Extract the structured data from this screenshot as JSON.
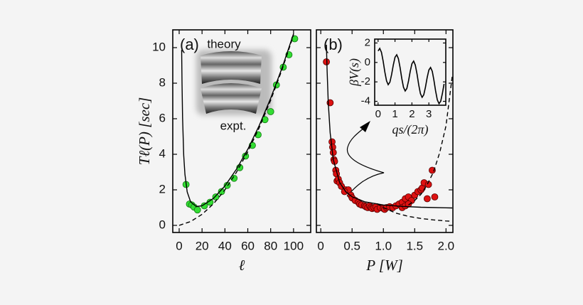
{
  "chart_data": [
    {
      "type": "scatter",
      "panel_label": "(a)",
      "x_label": "ℓ",
      "y_label": "Tℓ(P) [sec]",
      "annotations": [
        "theory",
        "expt."
      ],
      "xlim": [
        -5.6,
        115
      ],
      "ylim": [
        -0.4,
        11
      ],
      "xticks": [
        0,
        20,
        40,
        60,
        80,
        100
      ],
      "yticks": [
        0,
        2,
        4,
        6,
        8,
        10
      ],
      "series": [
        {
          "type": "scatter",
          "color": "#33dd33",
          "x": [
            6,
            9,
            11,
            13,
            16,
            22,
            27,
            32,
            37,
            42,
            48,
            53,
            58,
            64,
            69,
            75,
            80,
            85,
            91,
            96,
            101
          ],
          "values": [
            2.3,
            1.2,
            1.15,
            1.03,
            0.87,
            1.1,
            1.3,
            1.6,
            1.9,
            2.25,
            2.65,
            3.25,
            3.9,
            4.5,
            5.1,
            5.95,
            6.4,
            7.9,
            8.9,
            9.6,
            10.5
          ]
        },
        {
          "type": "line",
          "color": "#000000",
          "dash": false,
          "x": [
            2.2,
            2.5,
            3,
            4,
            5,
            7,
            10,
            15,
            20,
            30,
            40,
            50,
            60,
            70,
            80,
            90,
            100
          ],
          "values": [
            9.87,
            8.04,
            6.05,
            3.94,
            2.88,
            1.88,
            1.32,
            1.06,
            1.1,
            1.52,
            2.22,
            3.15,
            4.28,
            5.62,
            7.15,
            8.87,
            10.78
          ]
        },
        {
          "type": "line",
          "color": "#000000",
          "dash": true,
          "x": [
            0,
            10,
            20,
            30,
            40,
            50,
            60,
            70,
            80,
            90,
            100
          ],
          "values": [
            0,
            0.215,
            0.62,
            1.215,
            2.0,
            2.975,
            4.14,
            5.495,
            7.04,
            8.775,
            10.7
          ]
        }
      ]
    },
    {
      "type": "scatter",
      "panel_label": "(b)",
      "x_label": "P [W]",
      "ytick_labels": false,
      "xlim": [
        -0.07,
        2.11
      ],
      "ylim": [
        -0.4,
        11
      ],
      "xticks": [
        0,
        0.5,
        {
          "value": 1,
          "label": "1.0"
        },
        1.5,
        {
          "value": 2,
          "label": "2.0"
        }
      ],
      "yticks": [
        0,
        2,
        4,
        6,
        8,
        10
      ],
      "series": [
        {
          "type": "scatter",
          "color": "#dd1111",
          "x": [
            0.09,
            0.15,
            0.18,
            0.19,
            0.2,
            0.21,
            0.22,
            0.24,
            0.26,
            0.25,
            0.28,
            0.3,
            0.33,
            0.4,
            0.48,
            0.5,
            0.55,
            0.6,
            0.62,
            0.65,
            0.7,
            0.72,
            0.75,
            0.78,
            0.8,
            0.82,
            0.85,
            0.88,
            0.9,
            0.95,
            1.0,
            1.02,
            1.05,
            1.1,
            1.15,
            1.2,
            1.25,
            1.3,
            1.35,
            1.4,
            1.45,
            1.5,
            1.55,
            1.6,
            1.62,
            1.65,
            1.7,
            1.72,
            1.78,
            1.82,
            1.3,
            1.35,
            1.4,
            0.44,
            0.38
          ],
          "values": [
            9.2,
            6.9,
            4.7,
            4.4,
            4.1,
            3.7,
            3.6,
            3.1,
            2.5,
            2.9,
            2.6,
            2.4,
            2.2,
            2.0,
            1.7,
            1.55,
            1.4,
            1.3,
            1.2,
            1.15,
            1.1,
            1.05,
            1.0,
            1.1,
            1.0,
            0.95,
            1.0,
            1.05,
            0.9,
            1.0,
            0.95,
            0.9,
            1.0,
            1.05,
            1.0,
            1.1,
            1.2,
            1.3,
            1.5,
            1.6,
            1.4,
            1.7,
            1.9,
            2.0,
            2.1,
            2.4,
            1.5,
            2.3,
            3.1,
            1.6,
            1.0,
            1.1,
            1.2,
            2.0,
            1.9
          ]
        },
        {
          "type": "line",
          "color": "#000000",
          "dash": false,
          "x": [
            0.09,
            0.1,
            0.12,
            0.15,
            0.2,
            0.3,
            0.4,
            0.5,
            0.7,
            1.0,
            1.3,
            1.6,
            2.0,
            2.1
          ],
          "values": [
            10.16,
            8.81,
            6.91,
            5.2,
            3.7,
            2.42,
            1.89,
            1.61,
            1.33,
            1.15,
            1.07,
            1.02,
            0.99,
            0.98
          ]
        },
        {
          "type": "line",
          "color": "#000000",
          "dash": true,
          "x": [
            0.9,
            1.0,
            1.2,
            1.4,
            1.6,
            1.8,
            2.0,
            2.1
          ],
          "values": [
            1.23,
            1.0,
            0.69,
            0.51,
            0.39,
            0.31,
            0.25,
            0.23
          ]
        },
        {
          "type": "line",
          "color": "#000000",
          "dash": true,
          "x": [
            1.4,
            1.5,
            1.6,
            1.7,
            1.8,
            1.9,
            2.0,
            2.1
          ],
          "values": [
            1.15,
            1.4,
            1.75,
            2.3,
            3.0,
            4.1,
            5.6,
            8.4
          ]
        }
      ]
    },
    {
      "type": "line",
      "x_label": "qs/(2π)",
      "y_label": "βV(s)",
      "xlim": [
        -0.2,
        4.0
      ],
      "ylim": [
        -4.4,
        2.4
      ],
      "xticks": [
        0,
        1,
        2,
        3
      ],
      "yticks": [
        2,
        0,
        -2,
        -4
      ],
      "series": [
        {
          "type": "line",
          "color": "#000000",
          "dash": false,
          "x": [
            0,
            0.1,
            0.2,
            0.3,
            0.4,
            0.5,
            0.6,
            0.7,
            0.8,
            0.9,
            1.0,
            1.1,
            1.2,
            1.3,
            1.4,
            1.5,
            1.6,
            1.7,
            1.8,
            1.9,
            2.0,
            2.1,
            2.2,
            2.3,
            2.4,
            2.5,
            2.6,
            2.7,
            2.8,
            2.9,
            3.0,
            3.1,
            3.2,
            3.3,
            3.4,
            3.5,
            3.6,
            3.7,
            3.8,
            3.9
          ],
          "values": [
            1.18,
            1.44,
            1.05,
            0.13,
            -0.99,
            -1.9,
            -2.29,
            -2.03,
            -1.25,
            -0.26,
            0.53,
            0.79,
            0.4,
            -0.52,
            -1.64,
            -2.55,
            -2.94,
            -2.68,
            -1.9,
            -0.91,
            -0.13,
            0.14,
            -0.26,
            -1.17,
            -2.29,
            -3.2,
            -3.59,
            -3.33,
            -2.55,
            -1.56,
            -0.78,
            -0.52,
            -0.91,
            -1.82,
            -2.94,
            -3.85,
            -4.24,
            -3.98,
            -3.2,
            -2.21
          ]
        }
      ]
    }
  ]
}
